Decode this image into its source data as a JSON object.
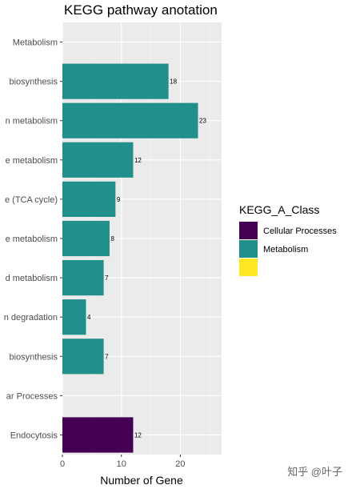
{
  "chart_data": {
    "type": "bar",
    "orientation": "horizontal",
    "title": "KEGG pathway anotation",
    "xlabel": "Number of Gene",
    "ylabel": "",
    "xlim": [
      0,
      27
    ],
    "x_ticks": [
      0,
      10,
      20
    ],
    "grid": true,
    "categories": [
      "Metabolism",
      "biosynthesis",
      "n metabolism",
      "e metabolism",
      "e (TCA cycle)",
      "e metabolism",
      "d metabolism",
      "n degradation",
      "biosynthesis",
      "ar Processes",
      "Endocytosis"
    ],
    "values": [
      null,
      18,
      23,
      12,
      9,
      8,
      7,
      4,
      7,
      null,
      12
    ],
    "bar_class": [
      null,
      "Metabolism",
      "Metabolism",
      "Metabolism",
      "Metabolism",
      "Metabolism",
      "Metabolism",
      "Metabolism",
      "Metabolism",
      null,
      "Cellular Processes"
    ],
    "value_labels": [
      "",
      "18",
      "23",
      "12",
      "9",
      "8",
      "7",
      "4",
      "7",
      "",
      "12"
    ],
    "legend": {
      "title": "KEGG_A_Class",
      "position": "right",
      "entries": [
        {
          "label": "Cellular Processes",
          "color": "#440154"
        },
        {
          "label": "Metabolism",
          "color": "#21908C"
        },
        {
          "label": "",
          "color": "#FDE725"
        }
      ]
    },
    "colors": {
      "panel": "#EBEBEB",
      "grid_major": "#FFFFFF",
      "grid_minor": "#F5F5F5",
      "Cellular Processes": "#440154",
      "Metabolism": "#21908C"
    }
  },
  "watermark": "知乎 @叶子"
}
